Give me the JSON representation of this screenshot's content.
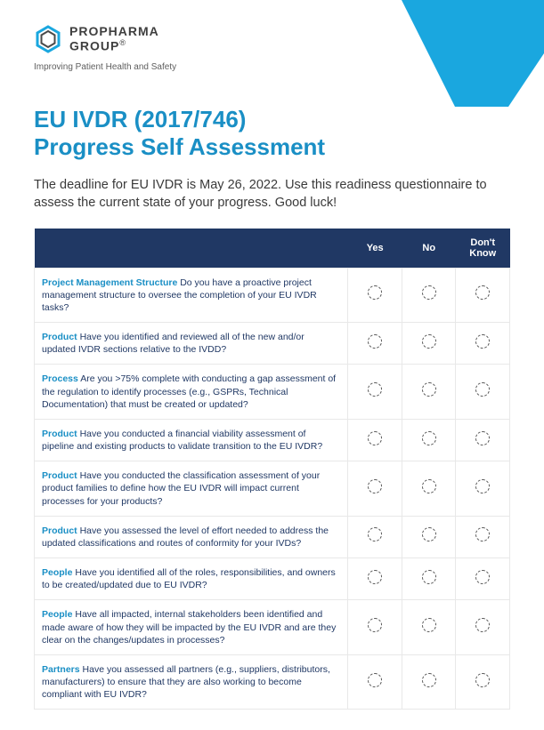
{
  "brand": {
    "name_line1": "PROPHARMA",
    "name_line2": "GROUP",
    "reg": "®",
    "tagline": "Improving Patient Health and Safety",
    "accent_color": "#1aa7df",
    "header_bar_color": "#203864",
    "title_color": "#1a8fc5"
  },
  "title": {
    "line1": "EU IVDR (2017/746)",
    "line2": "Progress Self Assessment"
  },
  "intro": "The deadline for EU IVDR is May 26, 2022. Use this readiness questionnaire to assess the current state of your progress. Good luck!",
  "table": {
    "headers": {
      "question": "",
      "yes": "Yes",
      "no": "No",
      "dont_know": "Don't Know"
    },
    "rows": [
      {
        "category": "Project Management Structure",
        "text": "Do you have a proactive project management structure to oversee the completion of your EU IVDR tasks?"
      },
      {
        "category": "Product",
        "text": "Have you identified and reviewed all of the new and/or updated IVDR sections relative to the IVDD?"
      },
      {
        "category": "Process",
        "text": "Are you >75% complete with conducting a gap assessment of the regulation to identify processes (e.g., GSPRs, Technical Documentation) that must be created or updated?"
      },
      {
        "category": "Product",
        "text": "Have you conducted a financial viability assessment of pipeline and existing products to validate transition to the EU IVDR?"
      },
      {
        "category": "Product",
        "text": "Have you conducted the classification assessment of your product families to define how the EU IVDR will impact current processes for your products?"
      },
      {
        "category": "Product",
        "text": "Have you assessed the level of effort needed to address the updated classifications and routes of conformity for your IVDs?"
      },
      {
        "category": "People",
        "text": "Have you identified all of the roles, responsibilities, and owners to be created/updated due to EU IVDR?"
      },
      {
        "category": "People",
        "text": "Have all impacted, internal stakeholders been identified and made aware of how they will be impacted by the EU IVDR and are they clear on the changes/updates in processes?"
      },
      {
        "category": "Partners",
        "text": "Have you assessed all partners (e.g., suppliers, distributors, manufacturers) to ensure that they are also working to become compliant with EU IVDR?"
      }
    ]
  }
}
